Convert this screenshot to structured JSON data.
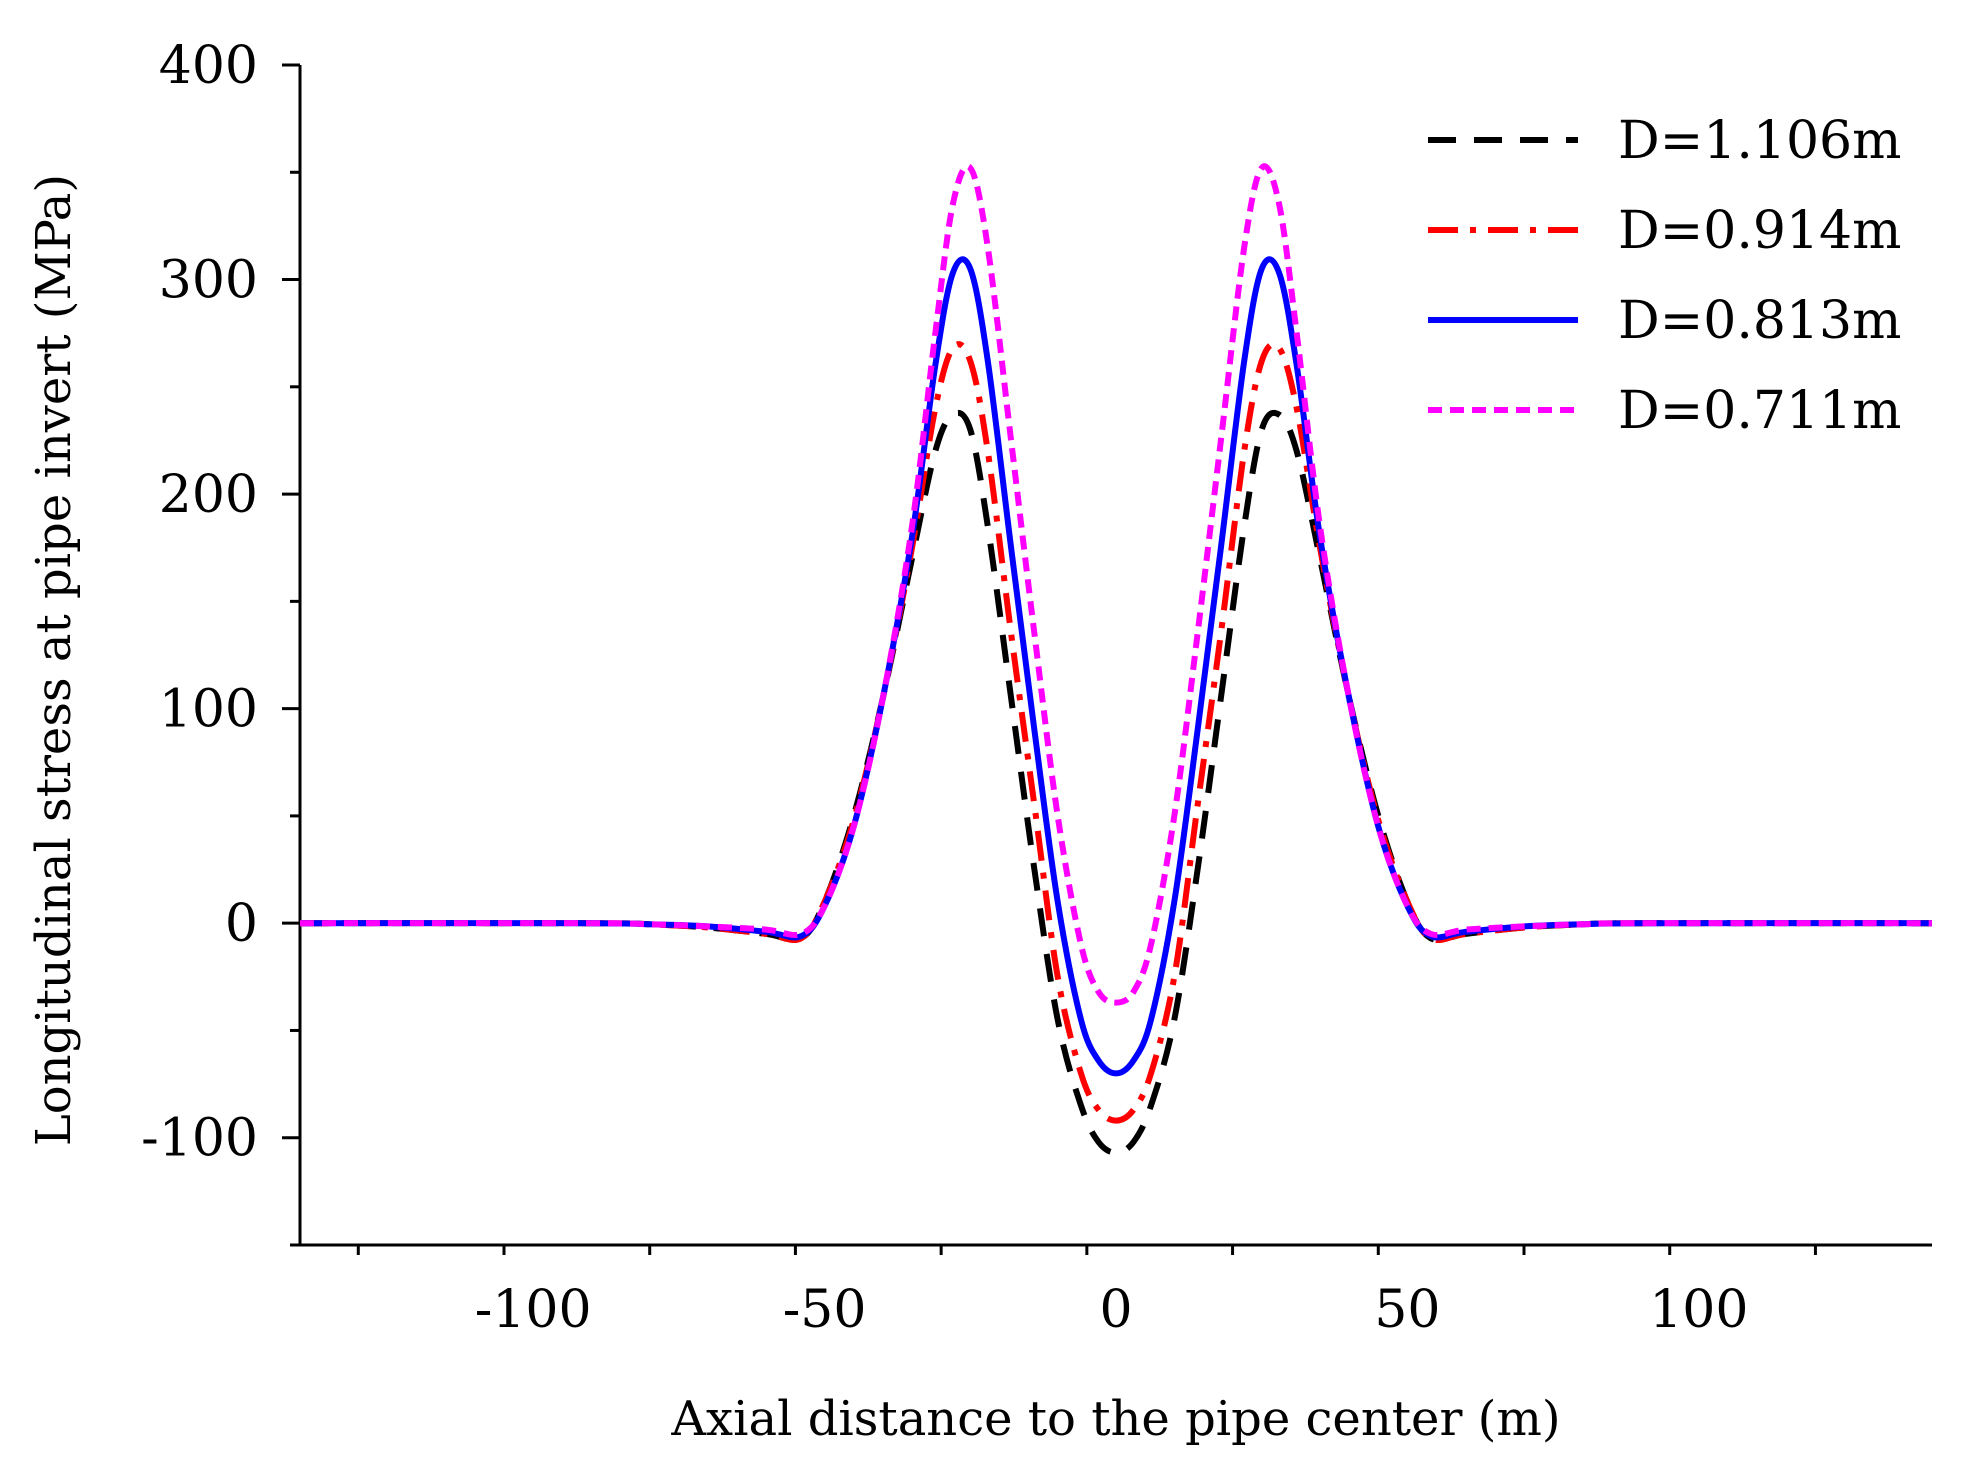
{
  "chart_data": {
    "type": "line",
    "title": "",
    "xlabel": "Axial distance to the pipe center (m)",
    "ylabel": "Longitudinal stress at pipe invert (MPa)",
    "xlim": [
      -140,
      140
    ],
    "ylim": [
      -150,
      400
    ],
    "xticks": [
      -100,
      -50,
      0,
      50,
      100
    ],
    "xtick_labels": [
      "-100",
      "-50",
      "0",
      "50",
      "100"
    ],
    "yticks": [
      -100,
      0,
      100,
      200,
      300,
      400
    ],
    "ytick_labels": [
      "-100",
      "0",
      "100",
      "200",
      "300",
      "400"
    ],
    "legend_position": "top-right",
    "series": [
      {
        "name": "D=1.106m",
        "color": "#000000",
        "style": "dashed",
        "x": [
          -140,
          -90,
          -80,
          -70,
          -60,
          -54,
          -50,
          -45,
          -40,
          -35,
          -31,
          -28,
          -25,
          -22,
          -18,
          -14,
          -10,
          -6,
          -3,
          0,
          3,
          6,
          10,
          14,
          18,
          22,
          25,
          28,
          31,
          35,
          40,
          45,
          50,
          54,
          60,
          70,
          80,
          90,
          140
        ],
        "values": [
          0,
          0,
          -0.5,
          -2,
          -5,
          -7,
          10,
          50,
          105,
          170,
          220,
          237,
          230,
          185,
          105,
          25,
          -45,
          -85,
          -102,
          -107,
          -102,
          -85,
          -45,
          25,
          105,
          185,
          230,
          237,
          220,
          170,
          105,
          50,
          10,
          -7,
          -5,
          -2,
          -0.5,
          0,
          0
        ]
      },
      {
        "name": "D=0.914m",
        "color": "#ff0000",
        "style": "dashdot",
        "x": [
          -140,
          -90,
          -80,
          -70,
          -60,
          -54,
          -50,
          -45,
          -40,
          -35,
          -31,
          -28,
          -25,
          -22,
          -18,
          -14,
          -10,
          -6,
          -3,
          0,
          3,
          6,
          10,
          14,
          18,
          22,
          25,
          28,
          31,
          35,
          40,
          45,
          50,
          54,
          60,
          70,
          80,
          90,
          140
        ],
        "values": [
          0,
          0,
          -0.5,
          -2,
          -5,
          -7,
          10,
          48,
          105,
          175,
          240,
          268,
          262,
          220,
          135,
          55,
          -25,
          -70,
          -87,
          -92,
          -87,
          -70,
          -25,
          55,
          135,
          220,
          262,
          268,
          240,
          175,
          105,
          48,
          10,
          -7,
          -5,
          -2,
          -0.5,
          0,
          0
        ]
      },
      {
        "name": "D=0.813m",
        "color": "#0000ff",
        "style": "solid",
        "x": [
          -140,
          -90,
          -80,
          -70,
          -60,
          -54,
          -50,
          -45,
          -40,
          -35,
          -31,
          -28,
          -25,
          -22,
          -18,
          -14,
          -10,
          -6,
          -3,
          0,
          3,
          6,
          10,
          14,
          18,
          22,
          25,
          28,
          31,
          35,
          40,
          45,
          50,
          54,
          60,
          70,
          80,
          90,
          140
        ],
        "values": [
          0,
          0,
          -0.5,
          -1.5,
          -4,
          -6,
          8,
          45,
          105,
          180,
          260,
          303,
          305,
          262,
          175,
          90,
          10,
          -45,
          -64,
          -70,
          -64,
          -45,
          10,
          90,
          175,
          262,
          305,
          303,
          260,
          180,
          105,
          45,
          8,
          -6,
          -4,
          -1.5,
          -0.5,
          0,
          0
        ]
      },
      {
        "name": "D=0.711m",
        "color": "#ff00ff",
        "style": "dotted",
        "x": [
          -140,
          -90,
          -80,
          -70,
          -60,
          -54,
          -50,
          -45,
          -40,
          -35,
          -31,
          -28,
          -25,
          -22,
          -18,
          -14,
          -10,
          -6,
          -3,
          0,
          3,
          6,
          10,
          14,
          18,
          22,
          25,
          28,
          31,
          35,
          40,
          45,
          50,
          54,
          60,
          70,
          80,
          90,
          140
        ],
        "values": [
          0,
          0,
          -0.5,
          -1.5,
          -3,
          -5,
          8,
          45,
          105,
          185,
          275,
          335,
          352,
          315,
          225,
          135,
          50,
          -10,
          -32,
          -37,
          -32,
          -10,
          50,
          135,
          225,
          315,
          352,
          335,
          275,
          185,
          105,
          45,
          8,
          -5,
          -3,
          -1.5,
          -0.5,
          0,
          0
        ]
      }
    ]
  }
}
